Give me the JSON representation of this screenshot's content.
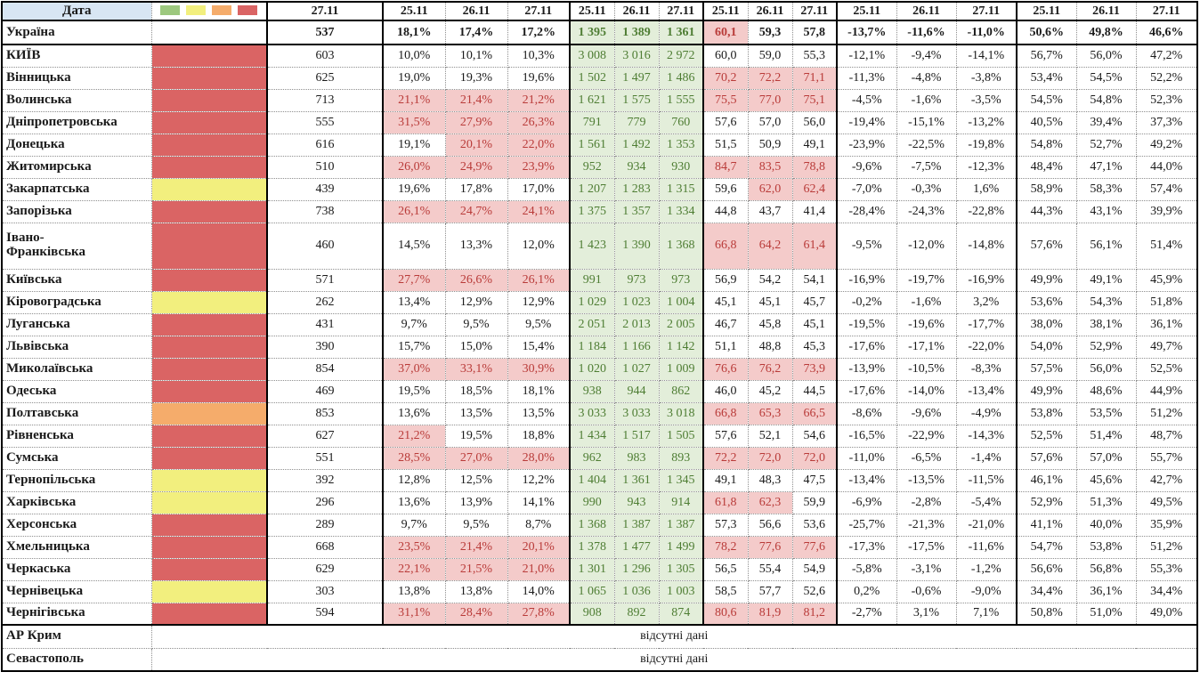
{
  "table": {
    "date_label": "Дата",
    "legend": [
      "green",
      "yellow",
      "orange",
      "red"
    ],
    "colors": {
      "green": "#9dc87e",
      "yellow": "#f2ef7e",
      "orange": "#f5ac6b",
      "red": "#da6464"
    },
    "date_headers": [
      "27.11",
      "25.11",
      "26.11",
      "27.11",
      "25.11",
      "26.11",
      "27.11",
      "25.11",
      "26.11",
      "27.11",
      "25.11",
      "26.11",
      "27.11",
      "25.11",
      "26.11",
      "27.11"
    ],
    "rows": [
      {
        "name": "Україна",
        "color": null,
        "bold": true,
        "num": "537",
        "pct": [
          "18,1%",
          "17,4%",
          "17,2%"
        ],
        "pct_hl": [
          false,
          false,
          false
        ],
        "green": [
          "1 395",
          "1 389",
          "1 361"
        ],
        "sixty": [
          "60,1",
          "59,3",
          "57,8"
        ],
        "sixty_hl": [
          true,
          false,
          false
        ],
        "chg": [
          "-13,7%",
          "-11,6%",
          "-11,0%"
        ],
        "pos": [
          "50,6%",
          "49,8%",
          "46,6%"
        ]
      },
      {
        "name": "КИЇВ",
        "color": "red",
        "num": "603",
        "pct": [
          "10,0%",
          "10,1%",
          "10,3%"
        ],
        "pct_hl": [
          false,
          false,
          false
        ],
        "green": [
          "3 008",
          "3 016",
          "2 972"
        ],
        "sixty": [
          "60,0",
          "59,0",
          "55,3"
        ],
        "sixty_hl": [
          false,
          false,
          false
        ],
        "chg": [
          "-12,1%",
          "-9,4%",
          "-14,1%"
        ],
        "pos": [
          "56,7%",
          "56,0%",
          "47,2%"
        ]
      },
      {
        "name": "Вінницька",
        "color": "red",
        "num": "625",
        "pct": [
          "19,0%",
          "19,3%",
          "19,6%"
        ],
        "pct_hl": [
          false,
          false,
          false
        ],
        "green": [
          "1 502",
          "1 497",
          "1 486"
        ],
        "sixty": [
          "70,2",
          "72,2",
          "71,1"
        ],
        "sixty_hl": [
          true,
          true,
          true
        ],
        "chg": [
          "-11,3%",
          "-4,8%",
          "-3,8%"
        ],
        "pos": [
          "53,4%",
          "54,5%",
          "52,2%"
        ]
      },
      {
        "name": "Волинська",
        "color": "red",
        "num": "713",
        "pct": [
          "21,1%",
          "21,4%",
          "21,2%"
        ],
        "pct_hl": [
          true,
          true,
          true
        ],
        "green": [
          "1 621",
          "1 575",
          "1 555"
        ],
        "sixty": [
          "75,5",
          "77,0",
          "75,1"
        ],
        "sixty_hl": [
          true,
          true,
          true
        ],
        "chg": [
          "-4,5%",
          "-1,6%",
          "-3,5%"
        ],
        "pos": [
          "54,5%",
          "54,8%",
          "52,3%"
        ]
      },
      {
        "name": "Дніпропетровська",
        "color": "red",
        "num": "555",
        "pct": [
          "31,5%",
          "27,9%",
          "26,3%"
        ],
        "pct_hl": [
          true,
          true,
          true
        ],
        "green": [
          "791",
          "779",
          "760"
        ],
        "sixty": [
          "57,6",
          "57,0",
          "56,0"
        ],
        "sixty_hl": [
          false,
          false,
          false
        ],
        "chg": [
          "-19,4%",
          "-15,1%",
          "-13,2%"
        ],
        "pos": [
          "40,5%",
          "39,4%",
          "37,3%"
        ]
      },
      {
        "name": "Донецька",
        "color": "red",
        "num": "616",
        "pct": [
          "19,1%",
          "20,1%",
          "22,0%"
        ],
        "pct_hl": [
          false,
          true,
          true
        ],
        "green": [
          "1 561",
          "1 492",
          "1 353"
        ],
        "sixty": [
          "51,5",
          "50,9",
          "49,1"
        ],
        "sixty_hl": [
          false,
          false,
          false
        ],
        "chg": [
          "-23,9%",
          "-22,5%",
          "-19,8%"
        ],
        "pos": [
          "54,8%",
          "52,7%",
          "49,2%"
        ]
      },
      {
        "name": "Житомирська",
        "color": "red",
        "num": "510",
        "pct": [
          "26,0%",
          "24,9%",
          "23,9%"
        ],
        "pct_hl": [
          true,
          true,
          true
        ],
        "green": [
          "952",
          "934",
          "930"
        ],
        "sixty": [
          "84,7",
          "83,5",
          "78,8"
        ],
        "sixty_hl": [
          true,
          true,
          true
        ],
        "chg": [
          "-9,6%",
          "-7,5%",
          "-12,3%"
        ],
        "pos": [
          "48,4%",
          "47,1%",
          "44,0%"
        ]
      },
      {
        "name": "Закарпатська",
        "color": "yellow",
        "num": "439",
        "pct": [
          "19,6%",
          "17,8%",
          "17,0%"
        ],
        "pct_hl": [
          false,
          false,
          false
        ],
        "green": [
          "1 207",
          "1 283",
          "1 315"
        ],
        "sixty": [
          "59,6",
          "62,0",
          "62,4"
        ],
        "sixty_hl": [
          false,
          true,
          true
        ],
        "chg": [
          "-7,0%",
          "-0,3%",
          "1,6%"
        ],
        "pos": [
          "58,9%",
          "58,3%",
          "57,4%"
        ]
      },
      {
        "name": "Запорізька",
        "color": "red",
        "num": "738",
        "pct": [
          "26,1%",
          "24,7%",
          "24,1%"
        ],
        "pct_hl": [
          true,
          true,
          true
        ],
        "green": [
          "1 375",
          "1 357",
          "1 334"
        ],
        "sixty": [
          "44,8",
          "43,7",
          "41,4"
        ],
        "sixty_hl": [
          false,
          false,
          false
        ],
        "chg": [
          "-28,4%",
          "-24,3%",
          "-22,8%"
        ],
        "pos": [
          "44,3%",
          "43,1%",
          "39,9%"
        ]
      },
      {
        "name": "Івано-Франківська",
        "color": "red",
        "tall": true,
        "num": "460",
        "pct": [
          "14,5%",
          "13,3%",
          "12,0%"
        ],
        "pct_hl": [
          false,
          false,
          false
        ],
        "green": [
          "1 423",
          "1 390",
          "1 368"
        ],
        "sixty": [
          "66,8",
          "64,2",
          "61,4"
        ],
        "sixty_hl": [
          true,
          true,
          true
        ],
        "chg": [
          "-9,5%",
          "-12,0%",
          "-14,8%"
        ],
        "pos": [
          "57,6%",
          "56,1%",
          "51,4%"
        ]
      },
      {
        "name": "Київська",
        "color": "red",
        "num": "571",
        "pct": [
          "27,7%",
          "26,6%",
          "26,1%"
        ],
        "pct_hl": [
          true,
          true,
          true
        ],
        "green": [
          "991",
          "973",
          "973"
        ],
        "sixty": [
          "56,9",
          "54,2",
          "54,1"
        ],
        "sixty_hl": [
          false,
          false,
          false
        ],
        "chg": [
          "-16,9%",
          "-19,7%",
          "-16,9%"
        ],
        "pos": [
          "49,9%",
          "49,1%",
          "45,9%"
        ]
      },
      {
        "name": "Кіровоградська",
        "color": "yellow",
        "num": "262",
        "pct": [
          "13,4%",
          "12,9%",
          "12,9%"
        ],
        "pct_hl": [
          false,
          false,
          false
        ],
        "green": [
          "1 029",
          "1 023",
          "1 004"
        ],
        "sixty": [
          "45,1",
          "45,1",
          "45,7"
        ],
        "sixty_hl": [
          false,
          false,
          false
        ],
        "chg": [
          "-0,2%",
          "-1,6%",
          "3,2%"
        ],
        "pos": [
          "53,6%",
          "54,3%",
          "51,8%"
        ]
      },
      {
        "name": "Луганська",
        "color": "red",
        "num": "431",
        "pct": [
          "9,7%",
          "9,5%",
          "9,5%"
        ],
        "pct_hl": [
          false,
          false,
          false
        ],
        "green": [
          "2 051",
          "2 013",
          "2 005"
        ],
        "sixty": [
          "46,7",
          "45,8",
          "45,1"
        ],
        "sixty_hl": [
          false,
          false,
          false
        ],
        "chg": [
          "-19,5%",
          "-19,6%",
          "-17,7%"
        ],
        "pos": [
          "38,0%",
          "38,1%",
          "36,1%"
        ]
      },
      {
        "name": "Львівська",
        "color": "red",
        "num": "390",
        "pct": [
          "15,7%",
          "15,0%",
          "15,4%"
        ],
        "pct_hl": [
          false,
          false,
          false
        ],
        "green": [
          "1 184",
          "1 166",
          "1 142"
        ],
        "sixty": [
          "51,1",
          "48,8",
          "45,3"
        ],
        "sixty_hl": [
          false,
          false,
          false
        ],
        "chg": [
          "-17,6%",
          "-17,1%",
          "-22,0%"
        ],
        "pos": [
          "54,0%",
          "52,9%",
          "49,7%"
        ]
      },
      {
        "name": "Миколаївська",
        "color": "red",
        "num": "854",
        "pct": [
          "37,0%",
          "33,1%",
          "30,9%"
        ],
        "pct_hl": [
          true,
          true,
          true
        ],
        "green": [
          "1 020",
          "1 027",
          "1 009"
        ],
        "sixty": [
          "76,6",
          "76,2",
          "73,9"
        ],
        "sixty_hl": [
          true,
          true,
          true
        ],
        "chg": [
          "-13,9%",
          "-10,5%",
          "-8,3%"
        ],
        "pos": [
          "57,5%",
          "56,0%",
          "52,5%"
        ]
      },
      {
        "name": "Одеська",
        "color": "red",
        "num": "469",
        "pct": [
          "19,5%",
          "18,5%",
          "18,1%"
        ],
        "pct_hl": [
          false,
          false,
          false
        ],
        "green": [
          "938",
          "944",
          "862"
        ],
        "sixty": [
          "46,0",
          "45,2",
          "44,5"
        ],
        "sixty_hl": [
          false,
          false,
          false
        ],
        "chg": [
          "-17,6%",
          "-14,0%",
          "-13,4%"
        ],
        "pos": [
          "49,9%",
          "48,6%",
          "44,9%"
        ]
      },
      {
        "name": "Полтавська",
        "color": "orange",
        "num": "853",
        "pct": [
          "13,6%",
          "13,5%",
          "13,5%"
        ],
        "pct_hl": [
          false,
          false,
          false
        ],
        "green": [
          "3 033",
          "3 033",
          "3 018"
        ],
        "sixty": [
          "66,8",
          "65,3",
          "66,5"
        ],
        "sixty_hl": [
          true,
          true,
          true
        ],
        "chg": [
          "-8,6%",
          "-9,6%",
          "-4,9%"
        ],
        "pos": [
          "53,8%",
          "53,5%",
          "51,2%"
        ]
      },
      {
        "name": "Рівненська",
        "color": "red",
        "num": "627",
        "pct": [
          "21,2%",
          "19,5%",
          "18,8%"
        ],
        "pct_hl": [
          true,
          false,
          false
        ],
        "green": [
          "1 434",
          "1 517",
          "1 505"
        ],
        "sixty": [
          "57,6",
          "52,1",
          "54,6"
        ],
        "sixty_hl": [
          false,
          false,
          false
        ],
        "chg": [
          "-16,5%",
          "-22,9%",
          "-14,3%"
        ],
        "pos": [
          "52,5%",
          "51,4%",
          "48,7%"
        ]
      },
      {
        "name": "Сумська",
        "color": "red",
        "num": "551",
        "pct": [
          "28,5%",
          "27,0%",
          "28,0%"
        ],
        "pct_hl": [
          true,
          true,
          true
        ],
        "green": [
          "962",
          "983",
          "893"
        ],
        "sixty": [
          "72,2",
          "72,0",
          "72,0"
        ],
        "sixty_hl": [
          true,
          true,
          true
        ],
        "chg": [
          "-11,0%",
          "-6,5%",
          "-1,4%"
        ],
        "pos": [
          "57,6%",
          "57,0%",
          "55,7%"
        ]
      },
      {
        "name": "Тернопільська",
        "color": "yellow",
        "num": "392",
        "pct": [
          "12,8%",
          "12,5%",
          "12,2%"
        ],
        "pct_hl": [
          false,
          false,
          false
        ],
        "green": [
          "1 404",
          "1 361",
          "1 345"
        ],
        "sixty": [
          "49,1",
          "48,3",
          "47,5"
        ],
        "sixty_hl": [
          false,
          false,
          false
        ],
        "chg": [
          "-13,4%",
          "-13,5%",
          "-11,5%"
        ],
        "pos": [
          "46,1%",
          "45,6%",
          "42,7%"
        ]
      },
      {
        "name": "Харківська",
        "color": "yellow",
        "num": "296",
        "pct": [
          "13,6%",
          "13,9%",
          "14,1%"
        ],
        "pct_hl": [
          false,
          false,
          false
        ],
        "green": [
          "990",
          "943",
          "914"
        ],
        "sixty": [
          "61,8",
          "62,3",
          "59,9"
        ],
        "sixty_hl": [
          true,
          true,
          false
        ],
        "chg": [
          "-6,9%",
          "-2,8%",
          "-5,4%"
        ],
        "pos": [
          "52,9%",
          "51,3%",
          "49,5%"
        ]
      },
      {
        "name": "Херсонська",
        "color": "red",
        "num": "289",
        "pct": [
          "9,7%",
          "9,5%",
          "8,7%"
        ],
        "pct_hl": [
          false,
          false,
          false
        ],
        "green": [
          "1 368",
          "1 387",
          "1 387"
        ],
        "sixty": [
          "57,3",
          "56,6",
          "53,6"
        ],
        "sixty_hl": [
          false,
          false,
          false
        ],
        "chg": [
          "-25,7%",
          "-21,3%",
          "-21,0%"
        ],
        "pos": [
          "41,1%",
          "40,0%",
          "35,9%"
        ]
      },
      {
        "name": "Хмельницька",
        "color": "red",
        "num": "668",
        "pct": [
          "23,5%",
          "21,4%",
          "20,1%"
        ],
        "pct_hl": [
          true,
          true,
          true
        ],
        "green": [
          "1 378",
          "1 477",
          "1 499"
        ],
        "sixty": [
          "78,2",
          "77,6",
          "77,6"
        ],
        "sixty_hl": [
          true,
          true,
          true
        ],
        "chg": [
          "-17,3%",
          "-17,5%",
          "-11,6%"
        ],
        "pos": [
          "54,7%",
          "53,8%",
          "51,2%"
        ]
      },
      {
        "name": "Черкаська",
        "color": "red",
        "num": "629",
        "pct": [
          "22,1%",
          "21,5%",
          "21,0%"
        ],
        "pct_hl": [
          true,
          true,
          true
        ],
        "green": [
          "1 301",
          "1 296",
          "1 305"
        ],
        "sixty": [
          "56,5",
          "55,4",
          "54,9"
        ],
        "sixty_hl": [
          false,
          false,
          false
        ],
        "chg": [
          "-5,8%",
          "-3,1%",
          "-1,2%"
        ],
        "pos": [
          "56,6%",
          "56,8%",
          "55,3%"
        ]
      },
      {
        "name": "Чернівецька",
        "color": "yellow",
        "num": "303",
        "pct": [
          "13,8%",
          "13,8%",
          "14,0%"
        ],
        "pct_hl": [
          false,
          false,
          false
        ],
        "green": [
          "1 065",
          "1 036",
          "1 003"
        ],
        "sixty": [
          "58,5",
          "57,7",
          "52,6"
        ],
        "sixty_hl": [
          false,
          false,
          false
        ],
        "chg": [
          "0,2%",
          "-0,6%",
          "-9,0%"
        ],
        "pos": [
          "34,4%",
          "36,1%",
          "34,4%"
        ]
      },
      {
        "name": "Чернігівська",
        "color": "red",
        "num": "594",
        "pct": [
          "31,1%",
          "28,4%",
          "27,8%"
        ],
        "pct_hl": [
          true,
          true,
          true
        ],
        "green": [
          "908",
          "892",
          "874"
        ],
        "sixty": [
          "80,6",
          "81,9",
          "81,2"
        ],
        "sixty_hl": [
          true,
          true,
          true
        ],
        "chg": [
          "-2,7%",
          "3,1%",
          "7,1%"
        ],
        "pos": [
          "50,8%",
          "51,0%",
          "49,0%"
        ]
      }
    ],
    "no_data_rows": [
      {
        "name": "АР Крим",
        "text": "відсутні дані"
      },
      {
        "name": "Севастополь",
        "text": "відсутні дані"
      }
    ]
  }
}
